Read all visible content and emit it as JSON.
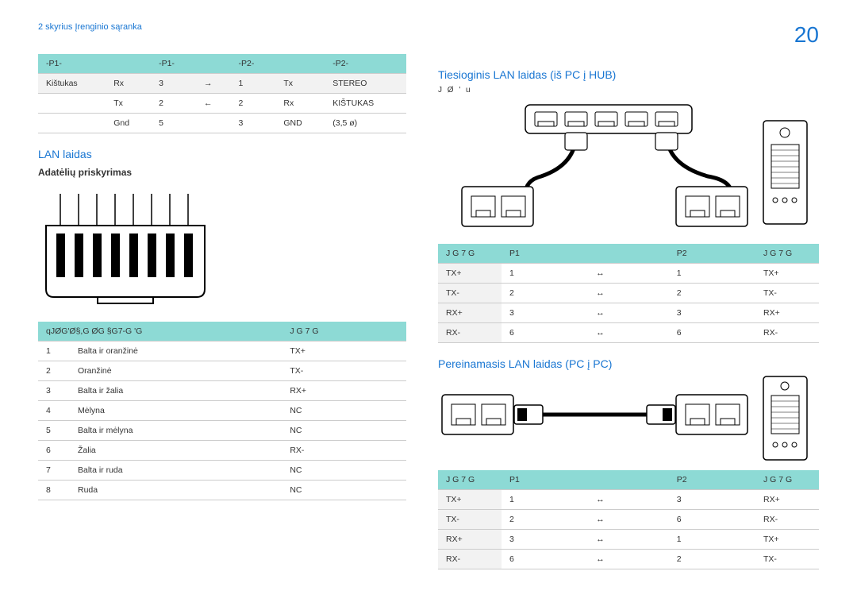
{
  "header": {
    "breadcrumb": "2 skyrius Įrenginio sąranka",
    "page_number": "20"
  },
  "colors": {
    "accent_blue": "#1976d2",
    "table_header": "#8ddad5",
    "table_alt": "#f2f2f2",
    "border": "#cccccc"
  },
  "table_p1p2": {
    "headers": [
      "-P1-",
      "",
      "-P1-",
      "",
      "-P2-",
      "",
      "-P2-"
    ],
    "subhead": [
      "Kištukas",
      "Rx",
      "3",
      "→",
      "1",
      "Tx",
      "STEREO"
    ],
    "rows": [
      [
        "",
        "Tx",
        "2",
        "←",
        "2",
        "Rx",
        "KIŠTUKAS"
      ],
      [
        "",
        "Gnd",
        "5",
        "",
        "3",
        "GND",
        "(3,5 ø)"
      ]
    ]
  },
  "lan_section": {
    "title": "LAN laidas",
    "subtitle": "Adatėlių priskyrimas",
    "pin_headers": [
      "qJØG'Ø§,G  ØG  §G7-G  'G",
      "J G 7 G"
    ],
    "pins": [
      [
        "1",
        "Balta ir oranžinė",
        "TX+"
      ],
      [
        "2",
        "Oranžinė",
        "TX-"
      ],
      [
        "3",
        "Balta ir žalia",
        "RX+"
      ],
      [
        "4",
        "Mėlyna",
        "NC"
      ],
      [
        "5",
        "Balta ir mėlyna",
        "NC"
      ],
      [
        "6",
        "Žalia",
        "RX-"
      ],
      [
        "7",
        "Balta ir ruda",
        "NC"
      ],
      [
        "8",
        "Ruda",
        "NC"
      ]
    ]
  },
  "direct_lan": {
    "title": "Tiesioginis LAN laidas (iš PC į HUB)",
    "note": "J  Ø   '  u",
    "headers": [
      "J G 7 G",
      "P1",
      "",
      "P2",
      "J G 7 G"
    ],
    "rows": [
      [
        "TX+",
        "1",
        "↔",
        "1",
        "TX+"
      ],
      [
        "TX-",
        "2",
        "↔",
        "2",
        "TX-"
      ],
      [
        "RX+",
        "3",
        "↔",
        "3",
        "RX+"
      ],
      [
        "RX-",
        "6",
        "↔",
        "6",
        "RX-"
      ]
    ]
  },
  "cross_lan": {
    "title": "Pereinamasis LAN laidas (PC į PC)",
    "headers": [
      "J G 7 G",
      "P1",
      "",
      "P2",
      "J G 7 G"
    ],
    "rows": [
      [
        "TX+",
        "1",
        "↔",
        "3",
        "RX+"
      ],
      [
        "TX-",
        "2",
        "↔",
        "6",
        "RX-"
      ],
      [
        "RX+",
        "3",
        "↔",
        "1",
        "TX+"
      ],
      [
        "RX-",
        "6",
        "↔",
        "2",
        "TX-"
      ]
    ]
  }
}
